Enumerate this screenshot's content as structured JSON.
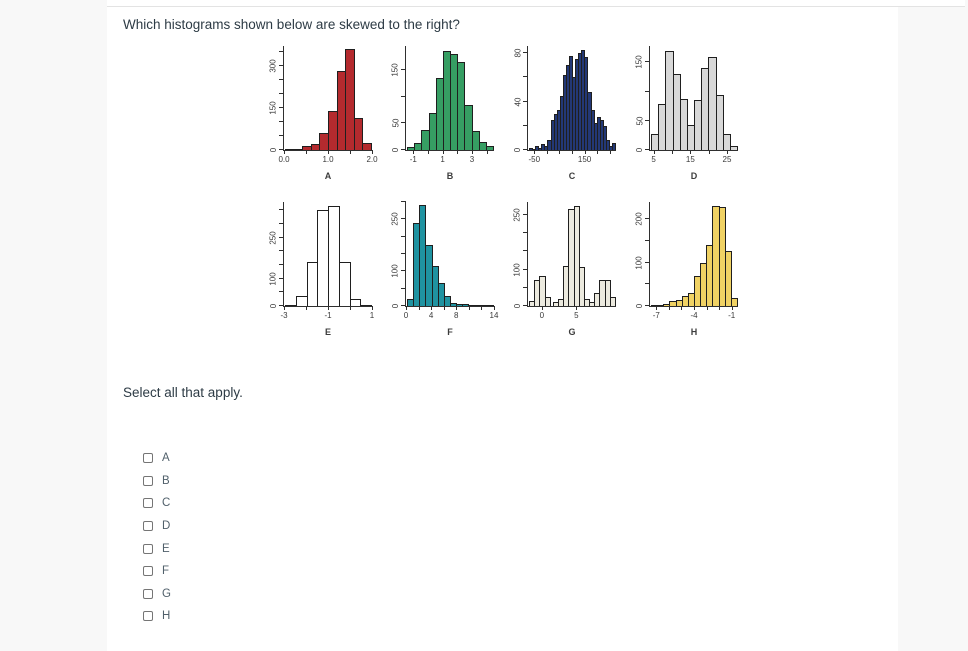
{
  "page": {
    "background": "#f8f8f8",
    "card_background": "#ffffff",
    "divider_color": "#e3e3e3"
  },
  "question": {
    "title": "Which histograms shown below are skewed to the right?",
    "select_note": "Select all that apply."
  },
  "options": [
    {
      "label": "A",
      "checked": false
    },
    {
      "label": "B",
      "checked": false
    },
    {
      "label": "C",
      "checked": false
    },
    {
      "label": "D",
      "checked": false
    },
    {
      "label": "E",
      "checked": false
    },
    {
      "label": "F",
      "checked": false
    },
    {
      "label": "G",
      "checked": false
    },
    {
      "label": "H",
      "checked": false
    }
  ],
  "chart_data": [
    {
      "type": "bar",
      "subtype": "histogram",
      "label": "A",
      "color": "#b42a2e",
      "xmin": 0,
      "xmax": 2,
      "values": [
        5,
        5,
        15,
        20,
        60,
        140,
        280,
        360,
        115,
        25
      ],
      "ymax": 370,
      "yticks": [
        0,
        50,
        100,
        150,
        200,
        250,
        300,
        350
      ],
      "ytick_labels": {
        "0": "0",
        "150": "150",
        "300": "300"
      },
      "xticks": [
        0,
        0.5,
        1,
        1.5,
        2
      ],
      "xtick_labels": {
        "0": "0.0",
        "1": "1.0",
        "2": "2.0"
      }
    },
    {
      "type": "bar",
      "subtype": "histogram",
      "label": "B",
      "color": "#369e63",
      "xmin": -1.5,
      "xmax": 4.5,
      "values": [
        5,
        13,
        38,
        70,
        135,
        185,
        180,
        165,
        85,
        35,
        15,
        8
      ],
      "ymax": 195,
      "yticks": [
        0,
        50,
        100,
        150
      ],
      "ytick_labels": {
        "0": "0",
        "50": "50",
        "150": "150"
      },
      "xticks": [
        -1,
        0,
        1,
        2,
        3,
        4
      ],
      "xtick_labels": {
        "-1": "-1",
        "1": "1",
        "3": "3"
      }
    },
    {
      "type": "bar",
      "subtype": "histogram",
      "label": "C",
      "color": "#233876",
      "xmin": -75,
      "xmax": 275,
      "values": [
        2,
        1,
        3,
        2,
        5,
        3,
        8,
        25,
        30,
        33,
        45,
        62,
        70,
        78,
        60,
        75,
        80,
        83,
        77,
        48,
        33,
        22,
        27,
        25,
        20,
        8,
        3,
        6
      ],
      "ymax": 86,
      "yticks": [
        0,
        20,
        40,
        60,
        80
      ],
      "ytick_labels": {
        "0": "0",
        "40": "40",
        "80": "80"
      },
      "xticks": [
        -50,
        0,
        50,
        100,
        150,
        200,
        250
      ],
      "xtick_labels": {
        "-50": "-50",
        "150": "150"
      }
    },
    {
      "type": "bar",
      "subtype": "histogram",
      "label": "D",
      "color": "#d8d8d8",
      "xmin": 4,
      "xmax": 28,
      "values": [
        28,
        78,
        170,
        130,
        88,
        42,
        85,
        140,
        160,
        95,
        28,
        7
      ],
      "ymax": 178,
      "yticks": [
        0,
        50,
        100,
        150
      ],
      "ytick_labels": {
        "0": "0",
        "50": "50",
        "150": "150"
      },
      "xticks": [
        5,
        10,
        15,
        20,
        25
      ],
      "xtick_labels": {
        "5": "5",
        "15": "15",
        "25": "25"
      }
    },
    {
      "type": "bar",
      "subtype": "histogram",
      "label": "E",
      "color": "#ffffff",
      "xmin": -3,
      "xmax": 1,
      "values": [
        5,
        35,
        160,
        350,
        365,
        160,
        25,
        5
      ],
      "ymax": 380,
      "yticks": [
        0,
        50,
        100,
        150,
        200,
        250,
        300,
        350
      ],
      "ytick_labels": {
        "0": "0",
        "100": "100",
        "250": "250"
      },
      "xticks": [
        -3,
        -2,
        -1,
        0,
        1
      ],
      "xtick_labels": {
        "-3": "-3",
        "-1": "-1",
        "1": "1"
      }
    },
    {
      "type": "bar",
      "subtype": "histogram",
      "label": "F",
      "color": "#1f93a1",
      "xmin": 0,
      "xmax": 14,
      "values": [
        20,
        240,
        290,
        175,
        115,
        65,
        28,
        10,
        5,
        5,
        4,
        2,
        2,
        2
      ],
      "ymax": 300,
      "yticks": [
        0,
        50,
        100,
        150,
        200,
        250,
        300
      ],
      "ytick_labels": {
        "0": "0",
        "100": "100",
        "250": "250"
      },
      "xticks": [
        0,
        2,
        4,
        6,
        8,
        10,
        12,
        14
      ],
      "xtick_labels": {
        "0": "0",
        "4": "4",
        "8": "8",
        "14": "14"
      }
    },
    {
      "type": "bar",
      "subtype": "histogram",
      "label": "G",
      "color": "#eceadf",
      "xmin": -2,
      "xmax": 10.75,
      "values": [
        15,
        70,
        82,
        25,
        0,
        12,
        20,
        110,
        265,
        275,
        108,
        18,
        12,
        35,
        70,
        70,
        25
      ],
      "ymax": 285,
      "yticks": [
        0,
        50,
        100,
        150,
        200,
        250
      ],
      "ytick_labels": {
        "0": "0",
        "100": "100",
        "250": "250"
      },
      "xticks": [
        0,
        5
      ],
      "xtick_labels": {
        "0": "0",
        "5": "5"
      }
    },
    {
      "type": "bar",
      "subtype": "histogram",
      "label": "H",
      "color": "#f0d264",
      "xmin": -7.5,
      "xmax": -0.5,
      "values": [
        3,
        3,
        5,
        12,
        15,
        22,
        30,
        70,
        100,
        140,
        230,
        228,
        128,
        18
      ],
      "ymax": 240,
      "yticks": [
        0,
        50,
        100,
        150,
        200
      ],
      "ytick_labels": {
        "0": "0",
        "100": "100",
        "200": "200"
      },
      "xticks": [
        -7,
        -6,
        -5,
        -4,
        -3,
        -2,
        -1
      ],
      "xtick_labels": {
        "-7": "-7",
        "-4": "-4",
        "-1": "-1"
      }
    }
  ]
}
